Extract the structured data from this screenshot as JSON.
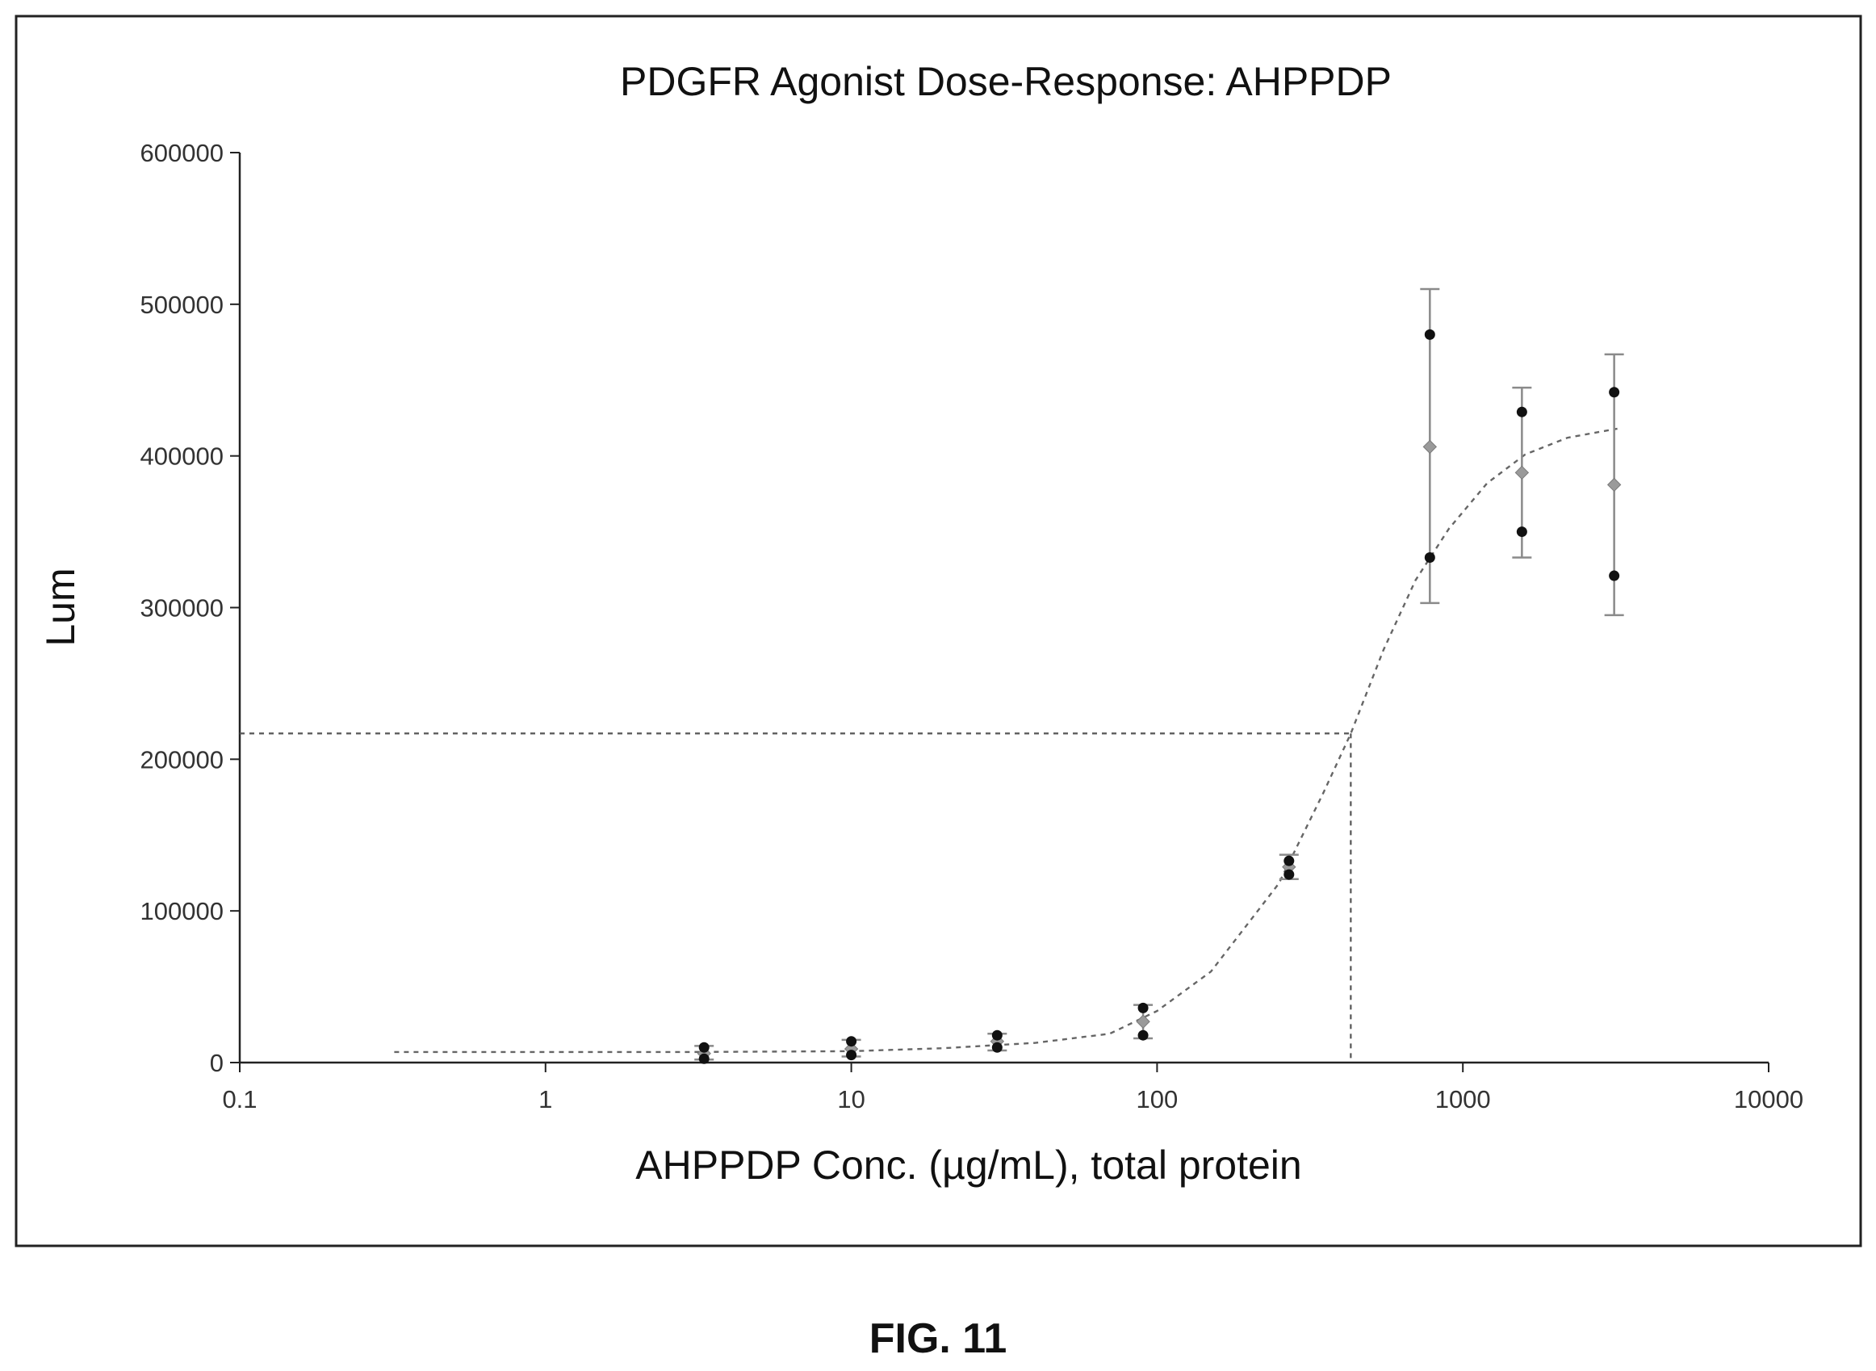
{
  "caption": "FIG. 11",
  "chart_data": {
    "type": "scatter",
    "title": "PDGFR Agonist Dose-Response: AHPPDP",
    "xlabel": "AHPPDP Conc. (µg/mL), total protein",
    "ylabel": "Lum",
    "x_scale": "log",
    "xlim": [
      0.1,
      10000
    ],
    "ylim": [
      0,
      600000
    ],
    "x_ticks": [
      "0.1",
      "1",
      "10",
      "100",
      "1000",
      "10000"
    ],
    "y_ticks": [
      "0",
      "100000",
      "200000",
      "300000",
      "400000",
      "500000",
      "600000"
    ],
    "grid": false,
    "legend": "none",
    "colors": {
      "replicate": "#111111",
      "mean": "#9a9a9a",
      "error_bar": "#8a8a8a",
      "fit": "#666666"
    },
    "replicates": [
      {
        "x": 3.3,
        "y": 10000
      },
      {
        "x": 3.3,
        "y": 2500
      },
      {
        "x": 10,
        "y": 14000
      },
      {
        "x": 10,
        "y": 5000
      },
      {
        "x": 30,
        "y": 18000
      },
      {
        "x": 30,
        "y": 10000
      },
      {
        "x": 90,
        "y": 36000
      },
      {
        "x": 90,
        "y": 18000
      },
      {
        "x": 270,
        "y": 133000
      },
      {
        "x": 270,
        "y": 124000
      },
      {
        "x": 780,
        "y": 480000
      },
      {
        "x": 780,
        "y": 333000
      },
      {
        "x": 1560,
        "y": 429000
      },
      {
        "x": 1560,
        "y": 350000
      },
      {
        "x": 3125,
        "y": 442000
      },
      {
        "x": 3125,
        "y": 321000
      }
    ],
    "means": [
      {
        "x": 3.3,
        "y": 6000,
        "err_low": 2000,
        "err_high": 11000
      },
      {
        "x": 10,
        "y": 9000,
        "err_low": 4000,
        "err_high": 15000
      },
      {
        "x": 30,
        "y": 14000,
        "err_low": 8000,
        "err_high": 19000
      },
      {
        "x": 90,
        "y": 27000,
        "err_low": 16000,
        "err_high": 38000
      },
      {
        "x": 270,
        "y": 129000,
        "err_low": 121000,
        "err_high": 137000
      },
      {
        "x": 780,
        "y": 406000,
        "err_low": 303000,
        "err_high": 510000
      },
      {
        "x": 1560,
        "y": 389000,
        "err_low": 333000,
        "err_high": 445000
      },
      {
        "x": 3125,
        "y": 381000,
        "err_low": 295000,
        "err_high": 467000
      }
    ],
    "fit_curve": {
      "x": [
        0.32,
        1,
        3,
        10,
        20,
        40,
        70,
        100,
        150,
        250,
        350,
        430,
        550,
        700,
        900,
        1200,
        1600,
        2200,
        3200
      ],
      "y": [
        7000,
        7000,
        7000,
        7500,
        9500,
        13000,
        19000,
        34000,
        60000,
        118000,
        178000,
        217000,
        272000,
        318000,
        352000,
        382000,
        401000,
        412000,
        418000
      ]
    },
    "ec50_marker": {
      "x": 430,
      "y": 217000
    }
  }
}
